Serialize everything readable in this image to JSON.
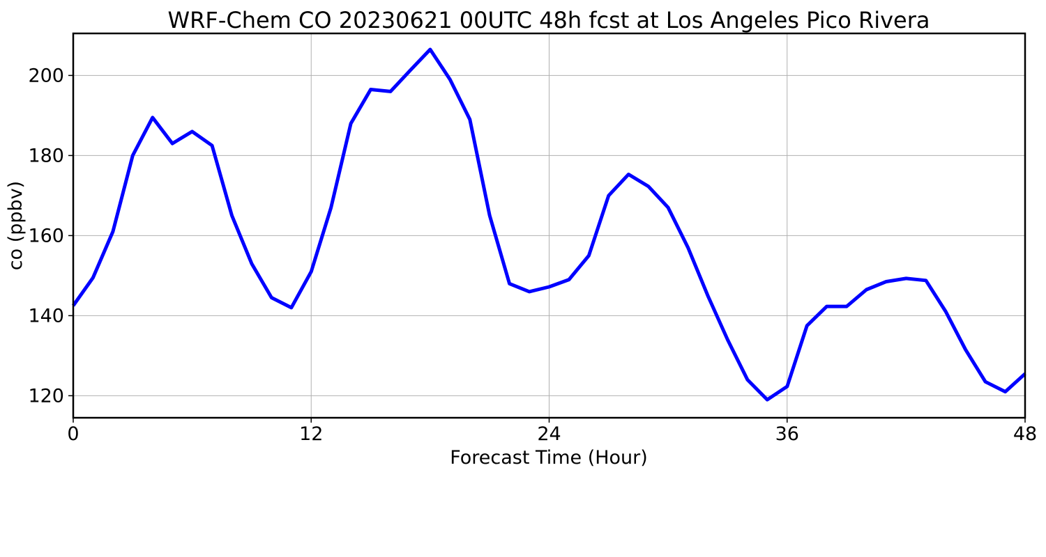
{
  "chart_data": {
    "type": "line",
    "title": "WRF-Chem CO  20230621 00UTC 48h fcst at Los Angeles Pico Rivera",
    "xlabel": "Forecast Time (Hour)",
    "ylabel": "co  (ppbv)",
    "xlim": [
      0,
      48
    ],
    "ylim": [
      114.5,
      210.5
    ],
    "xticks": [
      0,
      12,
      24,
      36,
      48
    ],
    "yticks": [
      120,
      140,
      160,
      180,
      200
    ],
    "grid": true,
    "line_color": "#0000ff",
    "series": [
      {
        "x": [
          0,
          1,
          2,
          3,
          4,
          5,
          6,
          7,
          8,
          9,
          10,
          11,
          12,
          13,
          14,
          15,
          16,
          17,
          18,
          19,
          20,
          21,
          22,
          23,
          24,
          25,
          26,
          27,
          28,
          29,
          30,
          31,
          32,
          33,
          34,
          35,
          36,
          37,
          38,
          39,
          40,
          41,
          42,
          43,
          44,
          45,
          46,
          47,
          48
        ],
        "values": [
          142.5,
          149.5,
          161,
          180,
          189.5,
          183,
          186,
          182.5,
          165,
          153,
          144.5,
          142,
          151,
          167,
          188,
          196.5,
          196,
          201.3,
          206.5,
          199,
          189,
          165,
          148,
          146,
          147.2,
          149,
          155,
          170,
          175.3,
          172.3,
          167,
          157,
          145,
          134,
          124,
          119,
          122.3,
          137.5,
          142.3,
          142.3,
          146.5,
          148.5,
          149.3,
          148.8,
          141,
          131.5,
          123.5,
          121,
          125.5
        ]
      }
    ]
  }
}
